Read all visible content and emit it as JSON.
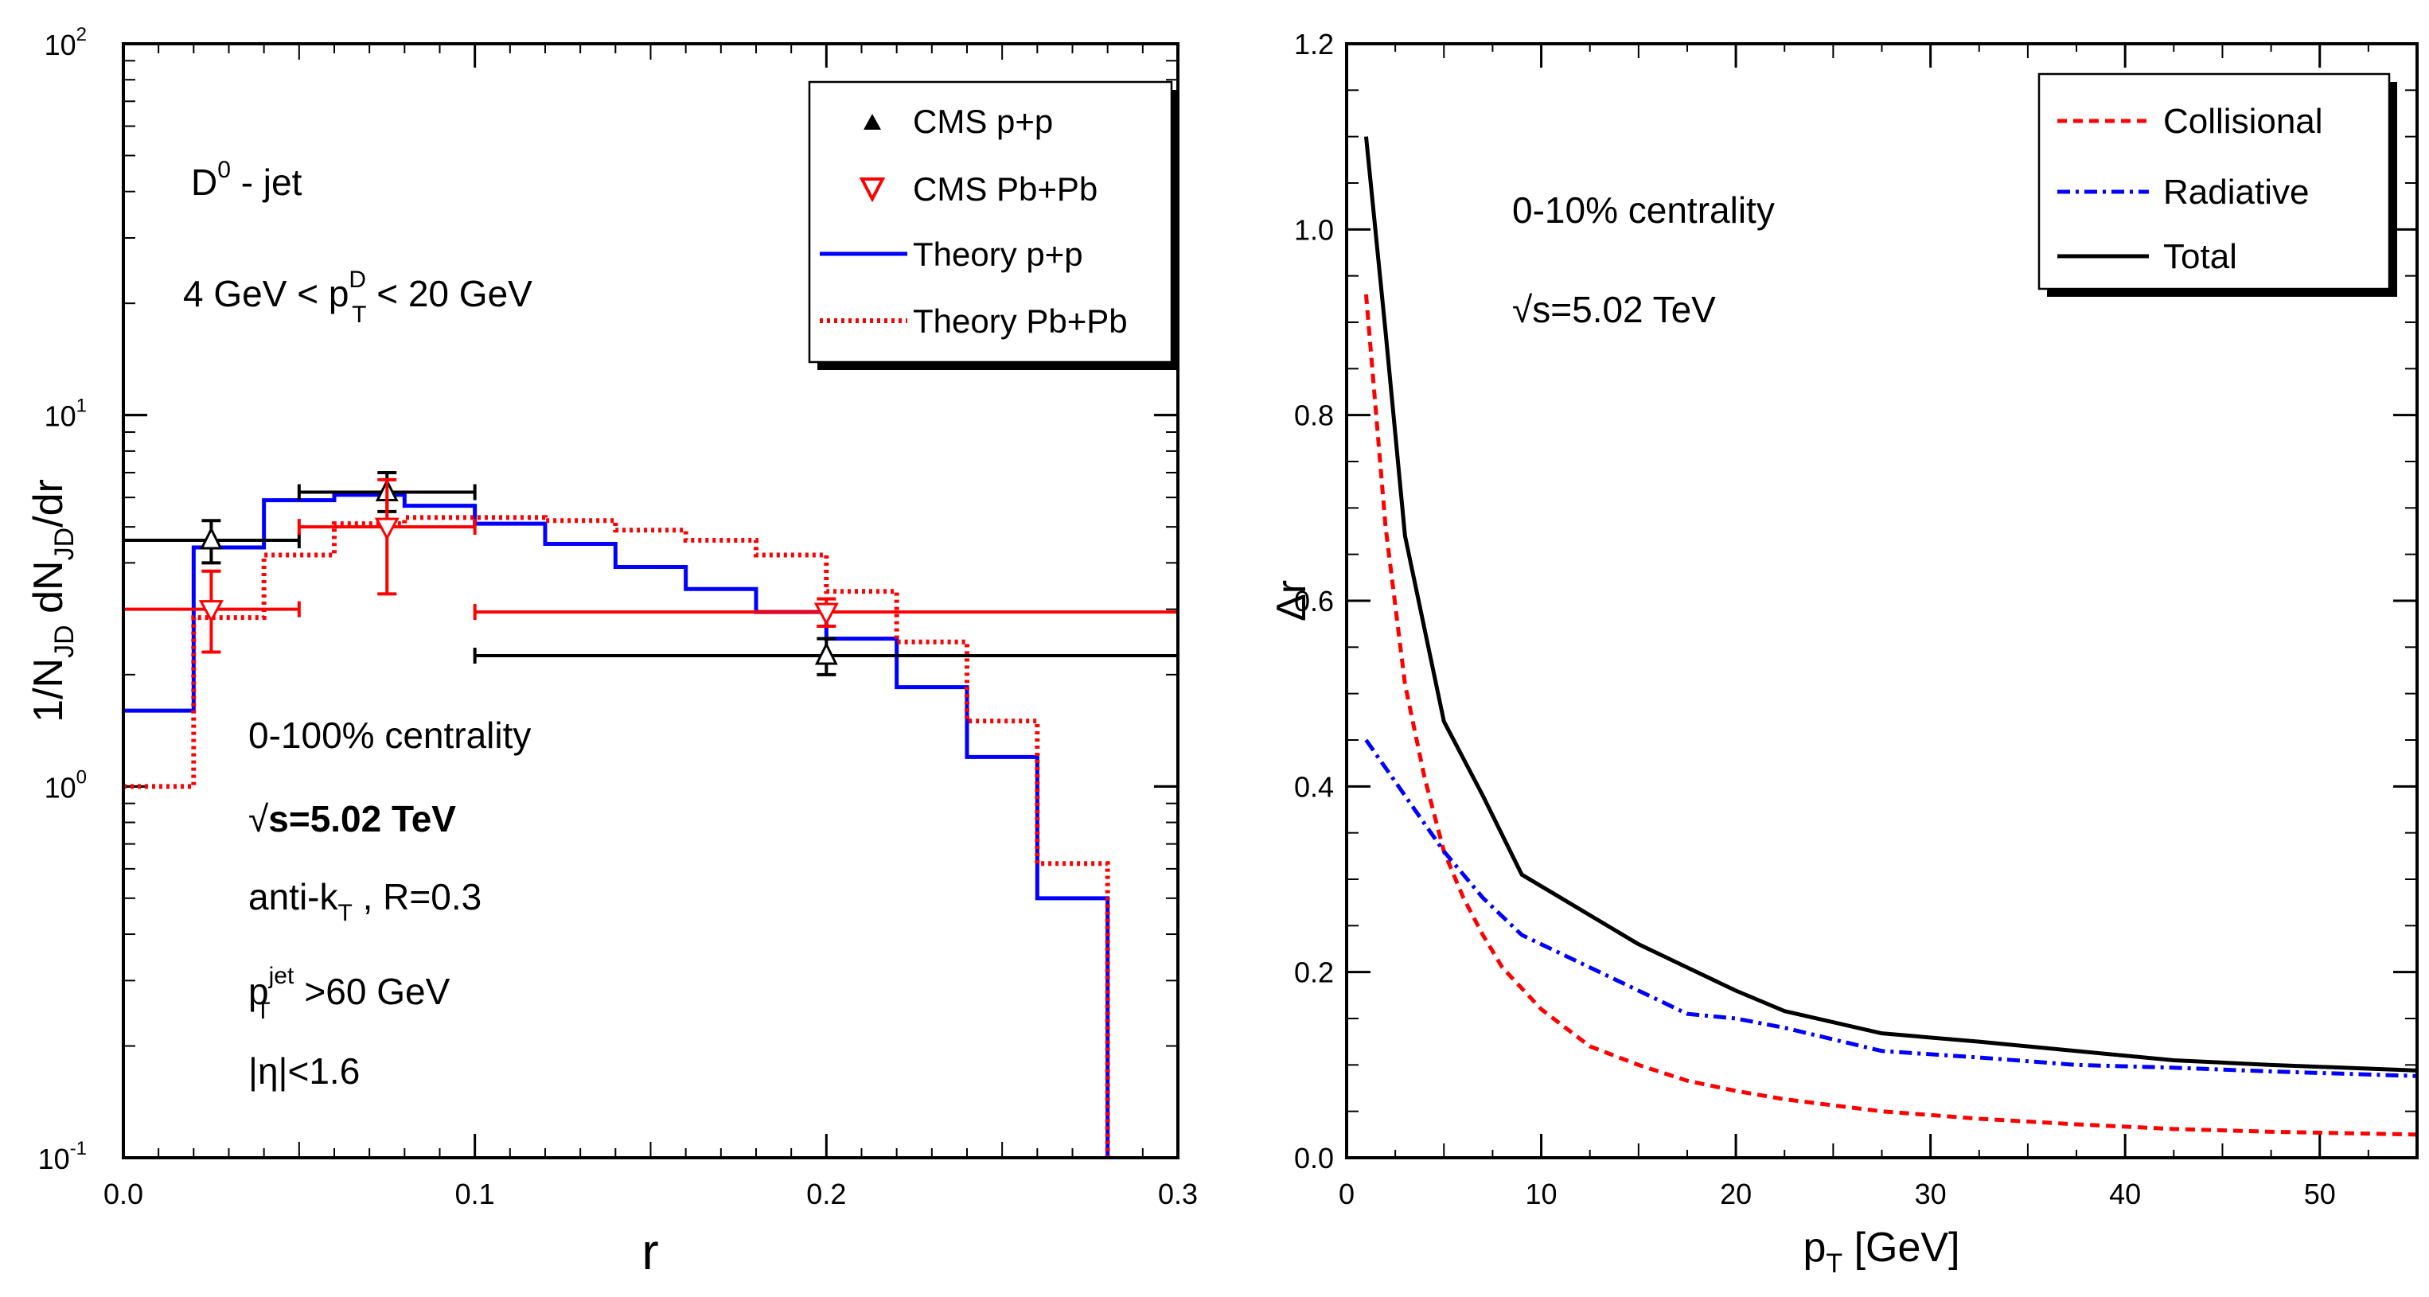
{
  "chart_data": [
    {
      "type": "line",
      "panel": "left",
      "xlabel": "r",
      "ylabel": "1/N_JD dN_JD/dr",
      "xlim": [
        0.0,
        0.3
      ],
      "ylim": [
        0.1,
        100
      ],
      "yscale": "log",
      "grid": false,
      "legend_position": "top-right",
      "xticks": [
        "0.0",
        "0.1",
        "0.2",
        "0.3"
      ],
      "yticks": [
        {
          "value": 0.1,
          "base": "10",
          "exp": "-1"
        },
        {
          "value": 1,
          "base": "10",
          "exp": "0"
        },
        {
          "value": 10,
          "base": "10",
          "exp": "1"
        },
        {
          "value": 100,
          "base": "10",
          "exp": "2"
        }
      ],
      "annotations": {
        "process": {
          "main": "D",
          "sup": "0",
          "rest": " - jet"
        },
        "ptD": {
          "a": "4 GeV < p",
          "sup": "D",
          "sub": "T",
          "b": " < 20 GeV"
        },
        "centrality": "0-100% centrality",
        "energy": {
          "root": "√",
          "rest": "s=5.02 TeV"
        },
        "antikt": {
          "a": "anti-k",
          "sub": "T",
          "b": " , R=0.3"
        },
        "ptjet": {
          "a": "p",
          "sup": "jet",
          "sub": "T",
          "b": " >60 GeV"
        },
        "eta": "|η|<1.6"
      },
      "series": [
        {
          "name": "CMS p+p",
          "kind": "points",
          "color": "#000000",
          "marker": "triangle-up",
          "points": [
            {
              "x": 0.025,
              "y": 4.6,
              "xlo": 0.0,
              "xhi": 0.05,
              "ylo": 4.0,
              "yhi": 5.2
            },
            {
              "x": 0.075,
              "y": 6.2,
              "xlo": 0.05,
              "xhi": 0.1,
              "ylo": 5.5,
              "yhi": 7.0
            },
            {
              "x": 0.2,
              "y": 2.25,
              "xlo": 0.1,
              "xhi": 0.3,
              "ylo": 2.0,
              "yhi": 2.5
            }
          ]
        },
        {
          "name": "CMS Pb+Pb",
          "kind": "points",
          "color": "#ff0000",
          "marker": "triangle-down",
          "points": [
            {
              "x": 0.025,
              "y": 3.0,
              "xlo": 0.0,
              "xhi": 0.05,
              "ylo": 2.3,
              "yhi": 3.8
            },
            {
              "x": 0.075,
              "y": 5.0,
              "xlo": 0.05,
              "xhi": 0.1,
              "ylo": 3.3,
              "yhi": 6.7
            },
            {
              "x": 0.2,
              "y": 2.95,
              "xlo": 0.1,
              "xhi": 0.3,
              "ylo": 2.7,
              "yhi": 3.2
            }
          ]
        },
        {
          "name": "Theory p+p",
          "kind": "step",
          "color": "#0000ff",
          "dash": "solid",
          "edges": [
            0.0,
            0.02,
            0.04,
            0.06,
            0.08,
            0.1,
            0.12,
            0.14,
            0.16,
            0.18,
            0.2,
            0.22,
            0.24,
            0.26,
            0.28
          ],
          "values": [
            1.6,
            4.4,
            5.9,
            6.1,
            5.7,
            5.1,
            4.5,
            3.9,
            3.4,
            2.95,
            2.5,
            1.85,
            1.2,
            0.5
          ],
          "drop_to": 0.1
        },
        {
          "name": "Theory Pb+Pb",
          "kind": "step",
          "color": "#ff0000",
          "dash": "dotted",
          "edges": [
            0.0,
            0.02,
            0.04,
            0.06,
            0.08,
            0.1,
            0.12,
            0.14,
            0.16,
            0.18,
            0.2,
            0.22,
            0.24,
            0.26,
            0.28
          ],
          "values": [
            1.0,
            2.85,
            4.2,
            5.1,
            5.3,
            5.3,
            5.2,
            4.9,
            4.6,
            4.2,
            3.35,
            2.45,
            1.5,
            0.62
          ],
          "drop_to": 0.1
        }
      ]
    },
    {
      "type": "line",
      "panel": "right",
      "xlabel": {
        "a": "p",
        "sub": "T",
        "b": " [GeV]"
      },
      "ylabel": "Δr",
      "xlim": [
        0,
        55
      ],
      "ylim": [
        0.0,
        1.2
      ],
      "grid": false,
      "legend_position": "top-right",
      "xticks": [
        "0",
        "10",
        "20",
        "30",
        "40",
        "50"
      ],
      "yticks": [
        "0.0",
        "0.2",
        "0.4",
        "0.6",
        "0.8",
        "1.0",
        "1.2"
      ],
      "annotations": {
        "centrality": "0-10% centrality",
        "energy": {
          "root": "√",
          "rest": "s=5.02 TeV"
        }
      },
      "series": [
        {
          "name": "Collisional",
          "color": "#ff0000",
          "dash": "dashed",
          "x": [
            1,
            2,
            3,
            4,
            5,
            6,
            7,
            8,
            10,
            12.5,
            15,
            17.5,
            20,
            22.5,
            27.5,
            32.5,
            37.5,
            42.5,
            47.5,
            55
          ],
          "y": [
            0.93,
            0.68,
            0.51,
            0.41,
            0.33,
            0.28,
            0.24,
            0.205,
            0.16,
            0.12,
            0.1,
            0.083,
            0.072,
            0.063,
            0.05,
            0.042,
            0.036,
            0.031,
            0.028,
            0.025
          ]
        },
        {
          "name": "Radiative",
          "color": "#0000ff",
          "dash": "dashdot",
          "x": [
            1,
            3,
            5,
            7,
            9,
            11,
            13,
            15,
            17.5,
            20,
            22.5,
            27.5,
            32.5,
            37.5,
            42.5,
            47.5,
            55
          ],
          "y": [
            0.45,
            0.39,
            0.33,
            0.28,
            0.24,
            0.22,
            0.2,
            0.18,
            0.155,
            0.15,
            0.14,
            0.115,
            0.108,
            0.1,
            0.097,
            0.093,
            0.088
          ]
        },
        {
          "name": "Total",
          "color": "#000000",
          "dash": "solid",
          "x": [
            1,
            2,
            3,
            4,
            5,
            7,
            9,
            11,
            13,
            15,
            17.5,
            20,
            22.5,
            27.5,
            32.5,
            37.5,
            42.5,
            47.5,
            55
          ],
          "y": [
            1.1,
            0.89,
            0.67,
            0.57,
            0.47,
            0.39,
            0.305,
            0.28,
            0.255,
            0.23,
            0.205,
            0.18,
            0.158,
            0.134,
            0.125,
            0.115,
            0.105,
            0.1,
            0.094
          ]
        }
      ]
    }
  ]
}
